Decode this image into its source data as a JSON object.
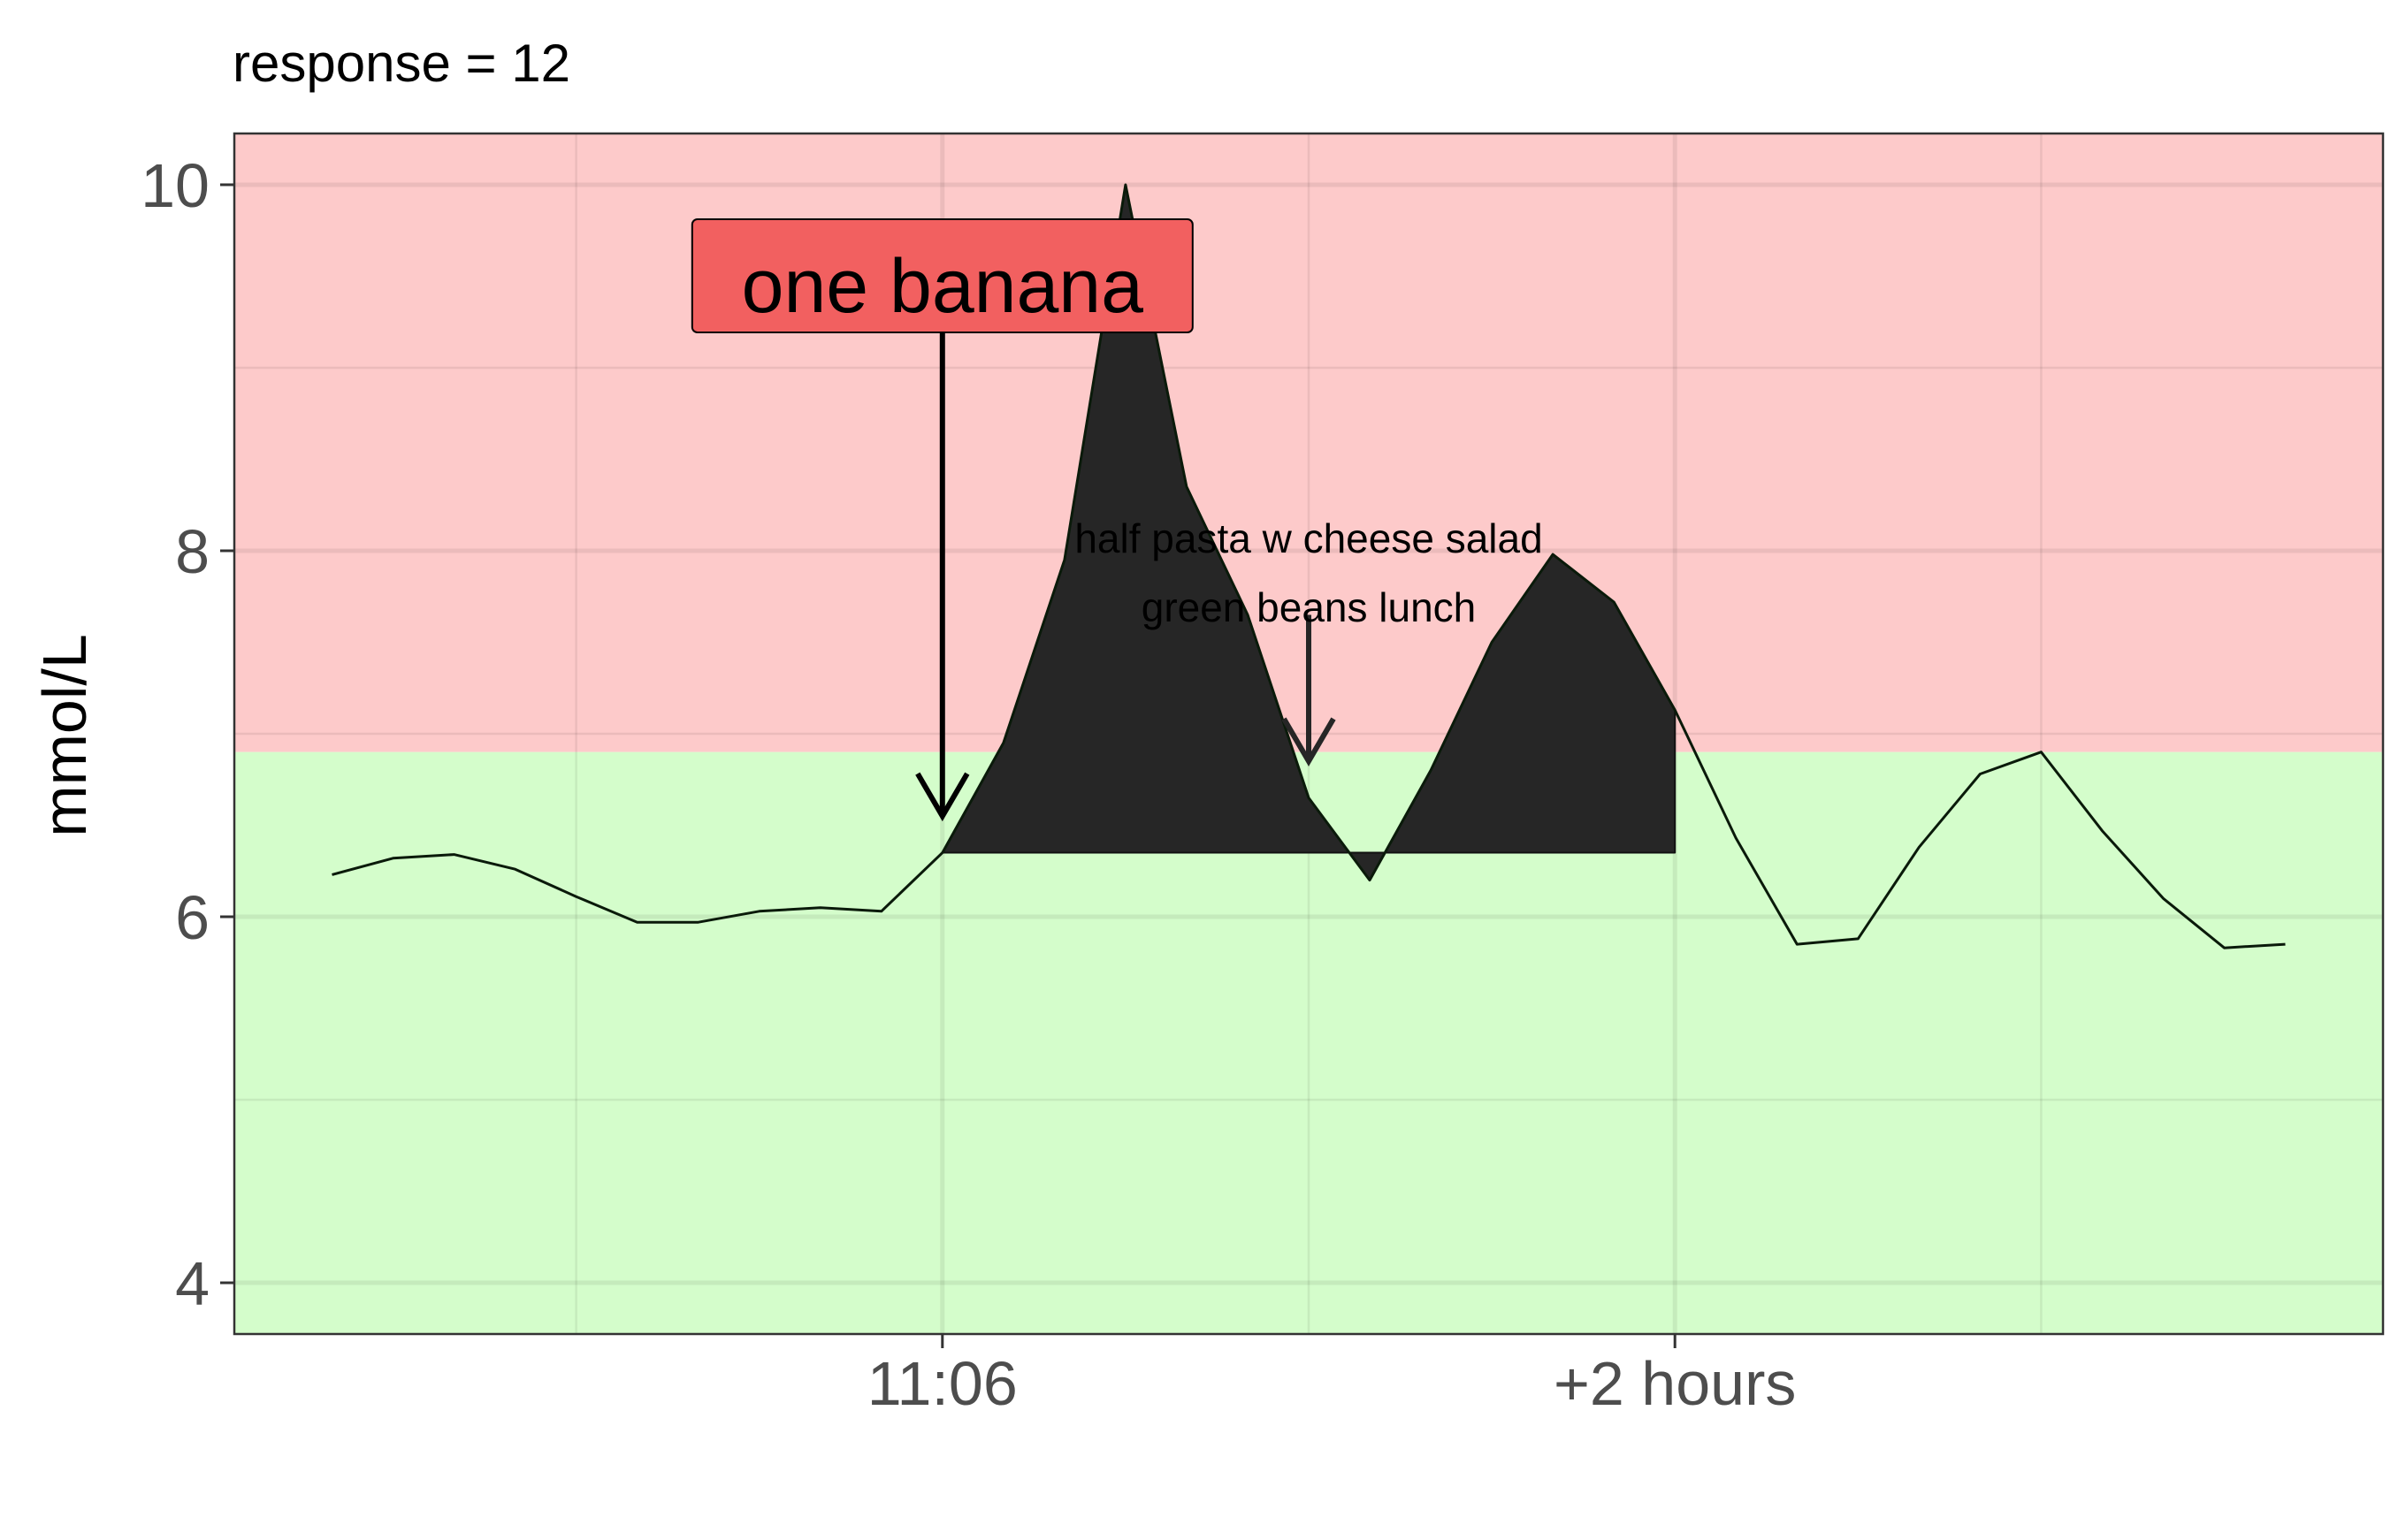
{
  "chart_data": {
    "type": "area",
    "title": "response = 12",
    "ylabel": "mmol/L",
    "xlabel": "",
    "x_tick_labels": [
      {
        "x": 0,
        "label": "11:06"
      },
      {
        "x": 120,
        "label": "+2 hours"
      }
    ],
    "y_ticks": [
      4,
      6,
      8,
      10
    ],
    "xlim": [
      -116,
      236
    ],
    "ylim": [
      3.72,
      10.28
    ],
    "bands": [
      {
        "name": "high",
        "from": 6.9,
        "to": 10.28,
        "color": "#fdcaca"
      },
      {
        "name": "normal",
        "from": 3.72,
        "to": 6.9,
        "color": "#d4fdcb"
      }
    ],
    "baseline": 6.35,
    "shade_range": [
      0,
      120
    ],
    "series": [
      {
        "x": [
          -100,
          -90,
          -80,
          -70,
          -60,
          -50,
          -40,
          -30,
          -20,
          -10,
          0,
          10,
          20,
          30,
          40,
          50,
          60,
          70,
          80,
          90,
          100,
          110,
          120,
          130,
          140,
          150,
          160,
          170,
          180,
          190,
          200,
          210,
          220
        ],
        "values": [
          6.23,
          6.32,
          6.34,
          6.26,
          6.11,
          5.97,
          5.97,
          6.03,
          6.05,
          6.03,
          6.35,
          6.95,
          7.95,
          10.0,
          8.35,
          7.65,
          6.65,
          6.2,
          6.8,
          7.5,
          7.98,
          7.72,
          7.13,
          6.43,
          5.85,
          5.88,
          6.38,
          6.78,
          6.9,
          6.47,
          6.1,
          5.83,
          5.85
        ]
      }
    ],
    "annotations": [
      {
        "text": "one banana",
        "x": 0,
        "label_y": 9.45,
        "arrow_tip_y": 6.55,
        "fill": "#f26060"
      },
      {
        "text_line1": "half pasta w cheese salad",
        "text_line2": "green beans lunch",
        "x": 60,
        "arrow_top_y": 7.65,
        "arrow_tip_y": 6.85
      }
    ],
    "grid": true,
    "colors": {
      "area_fill": "#262626",
      "line": "#0a1a0a",
      "grid_major": "#e0e0e0",
      "panel_border": "#333333",
      "tick_text": "#4d4d4d"
    }
  }
}
